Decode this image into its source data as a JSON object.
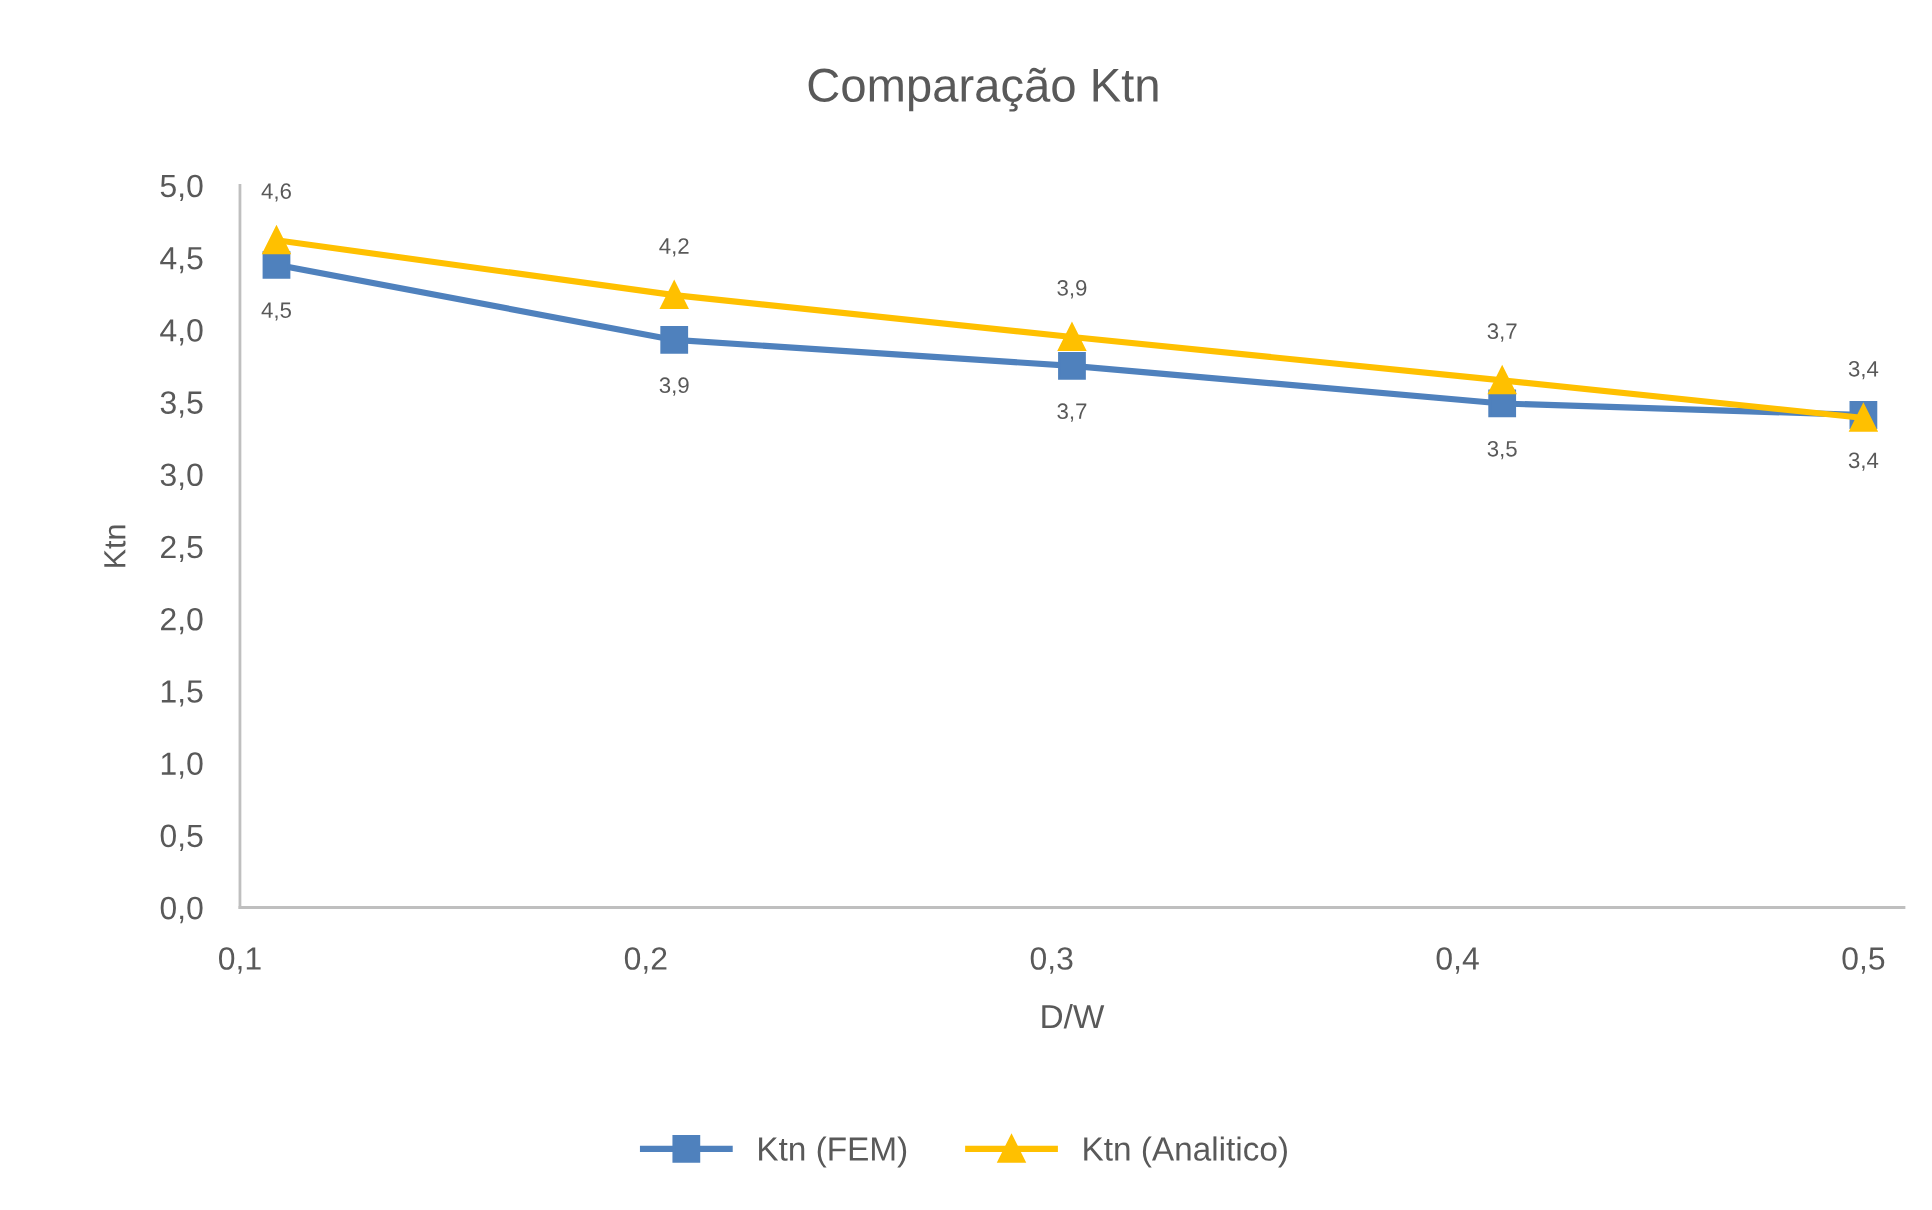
{
  "chart_data": {
    "type": "line",
    "title": "Comparação Ktn",
    "xlabel": "D/W",
    "ylabel": "Ktn",
    "x": [
      0.109,
      0.207,
      0.305,
      0.411,
      0.5
    ],
    "series": [
      {
        "name": "Ktn (FEM)",
        "color": "#4f81bd",
        "marker": "square",
        "values": [
          4.45,
          3.93,
          3.75,
          3.49,
          3.41
        ],
        "value_labels": [
          "4,5",
          "3,9",
          "3,7",
          "3,5",
          "3,4"
        ]
      },
      {
        "name": "Ktn (Analitico)",
        "color": "#ffc000",
        "marker": "triangle",
        "values": [
          4.62,
          4.24,
          3.95,
          3.65,
          3.39
        ],
        "value_labels": [
          "4,6",
          "4,2",
          "3,9",
          "3,7",
          "3,4"
        ]
      }
    ],
    "xlim": [
      0.1,
      0.51
    ],
    "xticks": [
      {
        "value": 0.1,
        "label": "0,1"
      },
      {
        "value": 0.2,
        "label": "0,2"
      },
      {
        "value": 0.3,
        "label": "0,3"
      },
      {
        "value": 0.4,
        "label": "0,4"
      },
      {
        "value": 0.5,
        "label": "0,5"
      }
    ],
    "ylim": [
      0,
      5
    ],
    "yticks": [
      {
        "value": 0,
        "label": "0,0"
      },
      {
        "value": 0.5,
        "label": "0,5"
      },
      {
        "value": 1,
        "label": "1,0"
      },
      {
        "value": 1.5,
        "label": "1,5"
      },
      {
        "value": 2,
        "label": "2,0"
      },
      {
        "value": 2.5,
        "label": "2,5"
      },
      {
        "value": 3,
        "label": "3,0"
      },
      {
        "value": 3.5,
        "label": "3,5"
      },
      {
        "value": 4,
        "label": "4,0"
      },
      {
        "value": 4.5,
        "label": "4,5"
      },
      {
        "value": 5,
        "label": "5,0"
      }
    ],
    "line_style": "solid",
    "legend": "bottom"
  }
}
